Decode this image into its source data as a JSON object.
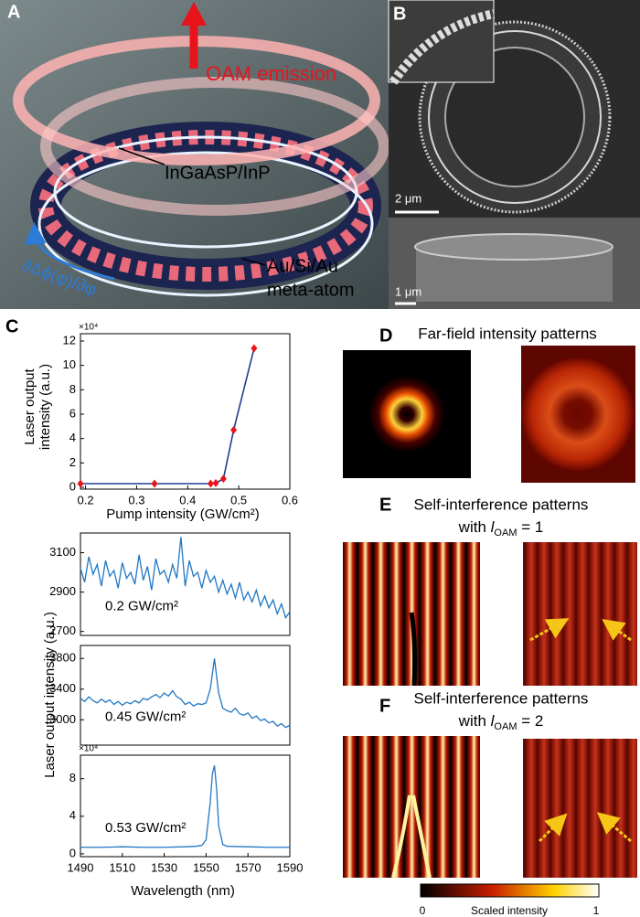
{
  "panels": {
    "A": {
      "label": "A",
      "emission": "OAM emission",
      "layer": "InGaAsP/InP",
      "atom_line1": "Au/Si/Au",
      "atom_line2": "meta-atom",
      "gradient": "∂Δϕ(φ)/∂φ"
    },
    "B": {
      "label": "B",
      "scale_top": "2 μm",
      "scale_bottom": "1 μm"
    },
    "C": {
      "label": "C"
    },
    "D": {
      "label": "D",
      "title": "Far-field intensity patterns"
    },
    "E": {
      "label": "E",
      "title": "Self-interference patterns",
      "prefix": "with ",
      "symbol": "l",
      "subscript": "OAM",
      "suffix": " = 1"
    },
    "F": {
      "label": "F",
      "title": "Self-interference patterns",
      "prefix": "with ",
      "symbol": "l",
      "subscript": "OAM",
      "suffix": " = 2"
    }
  },
  "colorbar": {
    "label": "Scaled intensity",
    "ticks": [
      0,
      1
    ]
  },
  "chart_data": [
    {
      "type": "line",
      "multiplier": "×10⁴",
      "xlabel": "Pump intensity (GW/cm²)",
      "ylabel": "Laser output intensity (a.u.)",
      "x": [
        0.19,
        0.335,
        0.445,
        0.455,
        0.47,
        0.49,
        0.53
      ],
      "series": [
        {
          "color": "#1f3f8f",
          "marker_color": "#e8141b",
          "values": [
            0.3,
            0.3,
            0.3,
            0.35,
            0.7,
            4.7,
            11.4
          ]
        }
      ],
      "xlim": [
        0.19,
        0.6
      ],
      "xticks": [
        0.2,
        0.3,
        0.4,
        0.5,
        0.6
      ],
      "ylim": [
        -0.15,
        12.6
      ],
      "yticks": [
        0,
        2,
        4,
        6,
        8,
        10,
        12
      ]
    },
    {
      "type": "line",
      "annotation": "0.2 GW/cm²",
      "x": [
        1490,
        1492,
        1494,
        1496,
        1498,
        1500,
        1502,
        1504,
        1506,
        1508,
        1510,
        1512,
        1514,
        1516,
        1518,
        1520,
        1522,
        1524,
        1526,
        1528,
        1530,
        1532,
        1534,
        1536,
        1538,
        1540,
        1542,
        1544,
        1546,
        1548,
        1550,
        1552,
        1554,
        1556,
        1558,
        1560,
        1562,
        1564,
        1566,
        1568,
        1570,
        1572,
        1574,
        1576,
        1578,
        1580,
        1582,
        1584,
        1586,
        1588,
        1590
      ],
      "series": [
        {
          "color": "#1f77c4",
          "values": [
            3020,
            2950,
            3080,
            2990,
            3040,
            2930,
            3060,
            2980,
            3010,
            2920,
            3050,
            2970,
            3000,
            2940,
            3090,
            2960,
            3030,
            2910,
            3070,
            2990,
            3010,
            2950,
            3040,
            2970,
            3180,
            2930,
            3060,
            2980,
            3000,
            2920,
            3010,
            2950,
            2980,
            2900,
            2960,
            2890,
            2940,
            2870,
            2950,
            2860,
            2900,
            2850,
            2910,
            2830,
            2880,
            2820,
            2860,
            2790,
            2840,
            2770,
            2800
          ]
        }
      ],
      "xlim": [
        1490,
        1590
      ],
      "ylim": [
        2680,
        3200
      ],
      "yticks": [
        2700,
        2900,
        3100
      ]
    },
    {
      "type": "line",
      "annotation": "0.45 GW/cm²",
      "ylabel": "Laser output intensity (a.u.)",
      "x": [
        1490,
        1492,
        1494,
        1496,
        1498,
        1500,
        1502,
        1504,
        1506,
        1508,
        1510,
        1512,
        1514,
        1516,
        1518,
        1520,
        1522,
        1524,
        1526,
        1528,
        1530,
        1532,
        1534,
        1536,
        1538,
        1540,
        1542,
        1544,
        1546,
        1548,
        1550,
        1552,
        1554,
        1556,
        1558,
        1560,
        1562,
        1564,
        1566,
        1568,
        1570,
        1572,
        1574,
        1576,
        1578,
        1580,
        1582,
        1584,
        1586,
        1588,
        1590
      ],
      "series": [
        {
          "color": "#1f77c4",
          "values": [
            3280,
            3240,
            3300,
            3250,
            3220,
            3270,
            3230,
            3260,
            3200,
            3240,
            3190,
            3230,
            3210,
            3250,
            3220,
            3280,
            3260,
            3300,
            3330,
            3290,
            3350,
            3310,
            3380,
            3300,
            3270,
            3200,
            3230,
            3180,
            3210,
            3200,
            3220,
            3400,
            3800,
            3350,
            3150,
            3120,
            3100,
            3150,
            3080,
            3060,
            3090,
            3020,
            3050,
            2990,
            3010,
            2960,
            2980,
            2920,
            2950,
            2900,
            2930
          ]
        }
      ],
      "xlim": [
        1490,
        1590
      ],
      "ylim": [
        2670,
        3970
      ],
      "yticks": [
        3000,
        3400,
        3800
      ]
    },
    {
      "type": "line",
      "annotation": "0.53 GW/cm²",
      "multiplier": "×10⁴",
      "xlabel": "Wavelength (nm)",
      "x": [
        1490,
        1500,
        1510,
        1520,
        1530,
        1540,
        1545,
        1548,
        1550,
        1552,
        1553,
        1554,
        1555,
        1556,
        1558,
        1560,
        1570,
        1580,
        1590
      ],
      "series": [
        {
          "color": "#1f77c4",
          "values": [
            0.7,
            0.7,
            0.75,
            0.7,
            0.7,
            0.75,
            0.8,
            0.9,
            1.5,
            5.5,
            8.5,
            9.4,
            7,
            3,
            1,
            0.8,
            0.75,
            0.7,
            0.7
          ]
        }
      ],
      "xlim": [
        1490,
        1590
      ],
      "xticks": [
        1490,
        1510,
        1530,
        1550,
        1570,
        1590
      ],
      "ylim": [
        -0.3,
        10.5
      ],
      "yticks": [
        0,
        4,
        8
      ]
    }
  ]
}
